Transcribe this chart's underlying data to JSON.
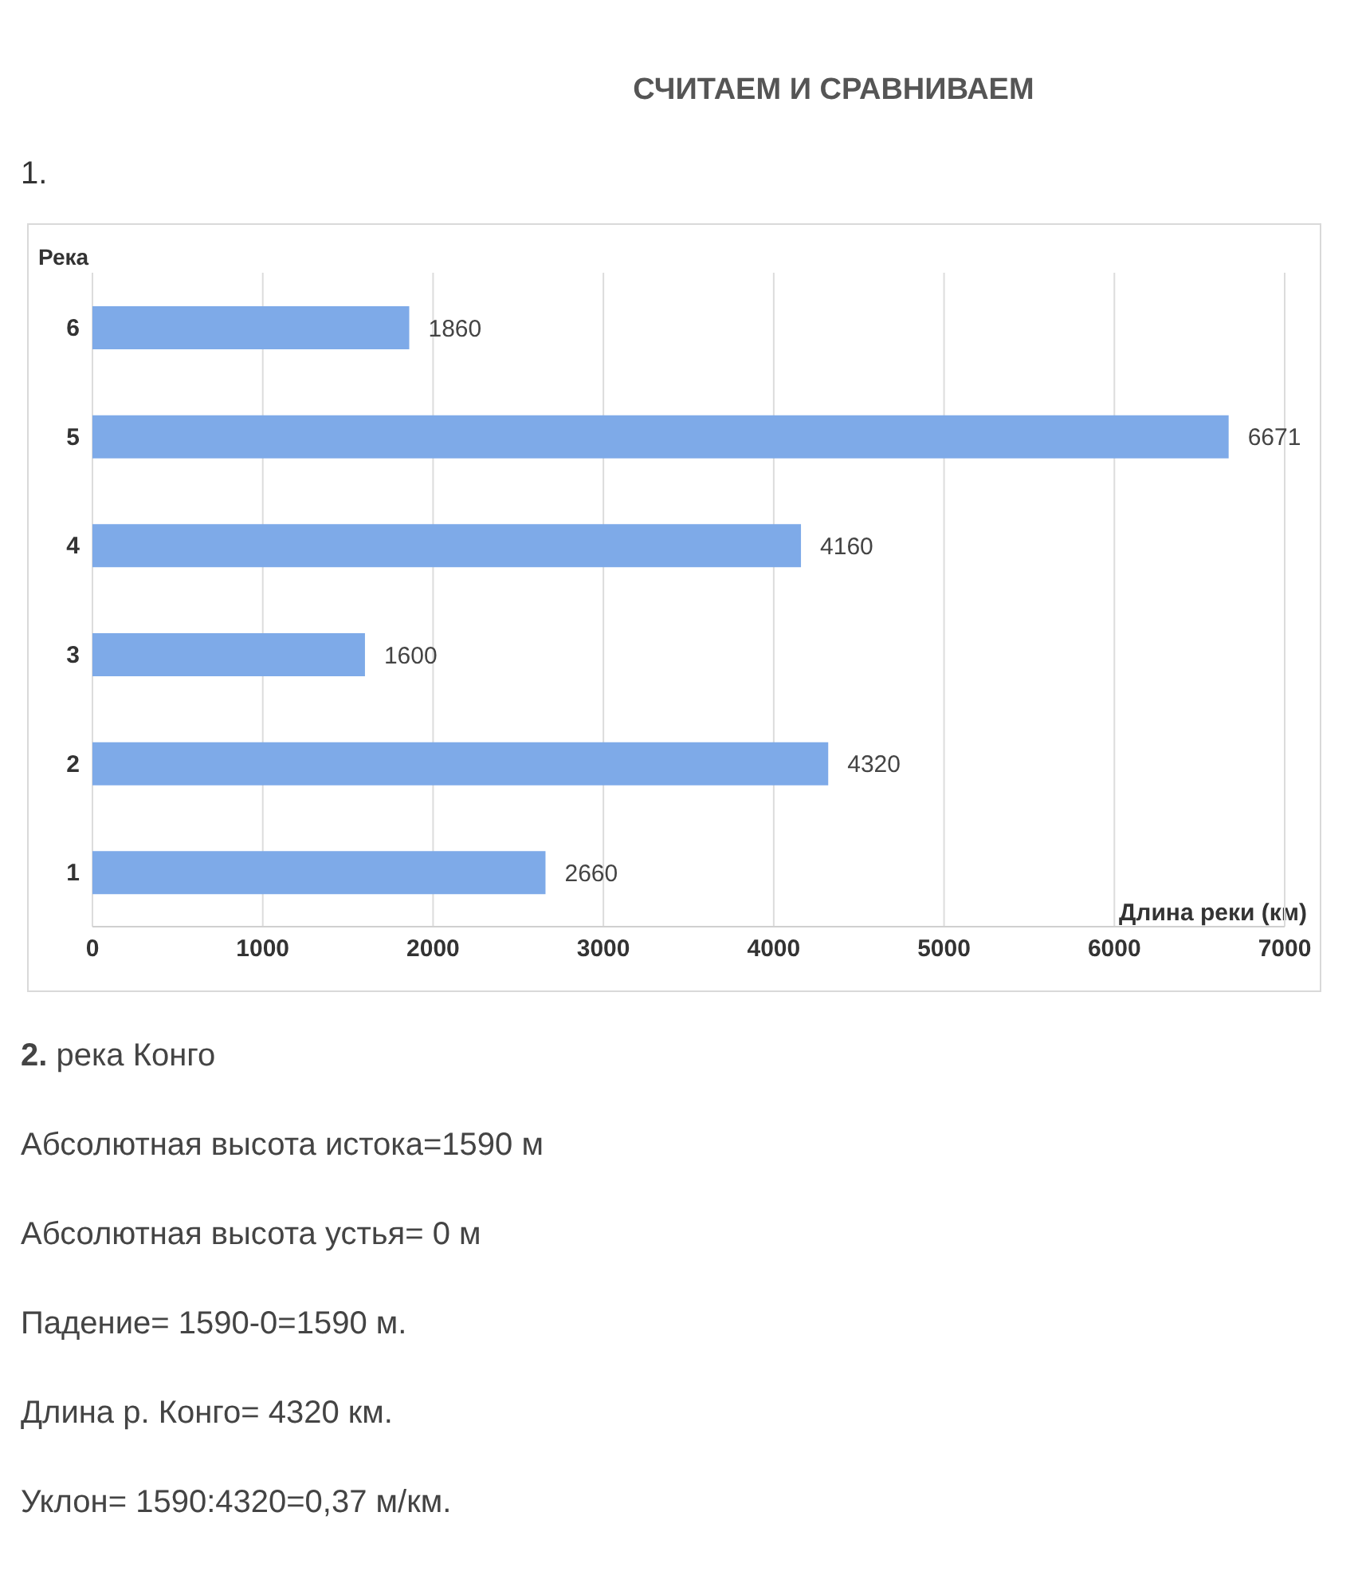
{
  "chart_data": {
    "type": "bar",
    "orientation": "horizontal",
    "title": "СЧИТАЕМ И СРАВНИВАЕМ",
    "ylabel": "Река",
    "xlabel": "Длина реки (км)",
    "categories": [
      "6",
      "5",
      "4",
      "3",
      "2",
      "1"
    ],
    "values": [
      1860,
      6671,
      4160,
      1600,
      4320,
      2660
    ],
    "color": "#7eaae8",
    "xlim": [
      0,
      7000
    ],
    "xticks": [
      0,
      1000,
      2000,
      3000,
      4000,
      5000,
      6000,
      7000
    ],
    "grid": "x",
    "data_labels": true,
    "annotations": [
      "1.",
      "2. река Конго",
      "Абсолютная высота истока=1590 м",
      "Абсолютная высота устья= 0 м",
      "Падение= 1590-0=1590 м.",
      "Длина р. Конго= 4320 км.",
      "Уклон= 1590:4320=0,37 м/км."
    ]
  }
}
